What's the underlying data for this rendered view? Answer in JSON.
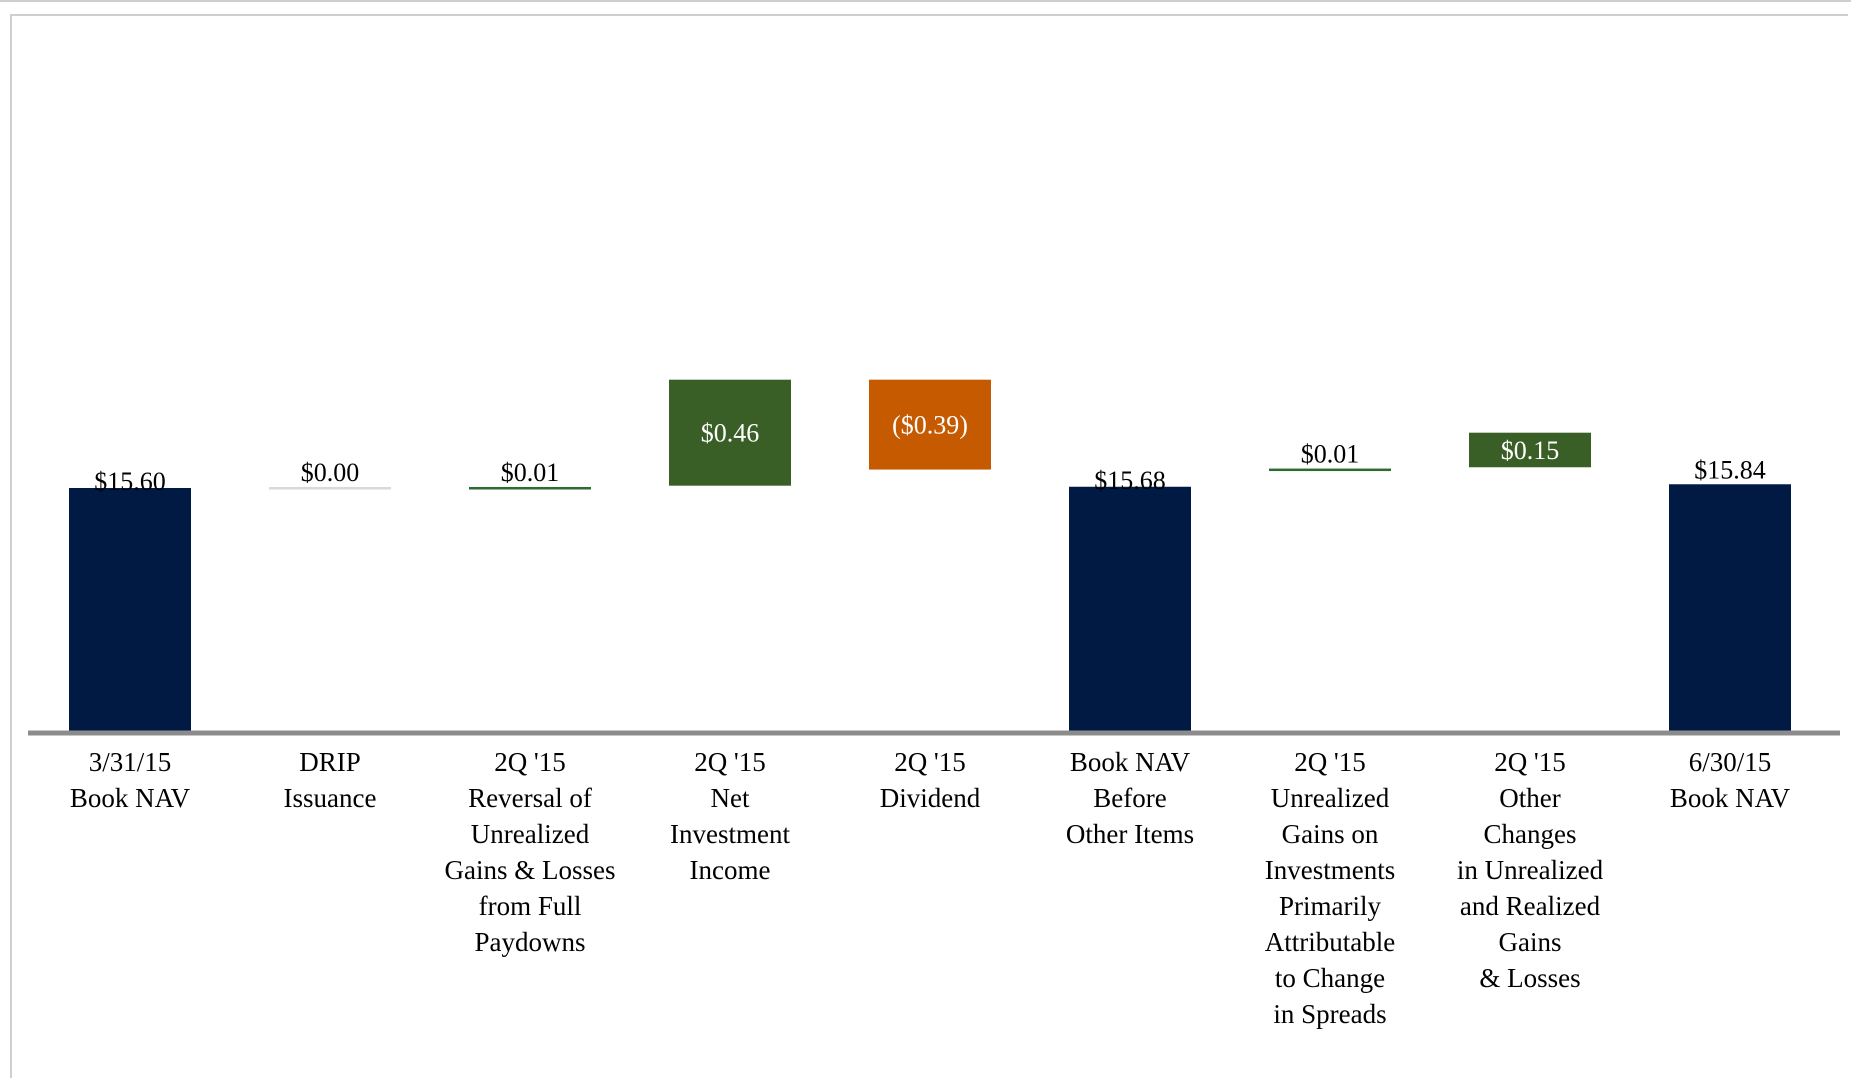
{
  "chart_data": {
    "type": "bar",
    "subtype": "waterfall",
    "title": "",
    "xlabel": "",
    "ylabel": "",
    "ylim": [
      0,
      16.5
    ],
    "grid": false,
    "legend": "none",
    "categories": [
      [
        "3/31/15",
        "Book NAV"
      ],
      [
        "DRIP",
        "Issuance"
      ],
      [
        "2Q '15",
        "Reversal of",
        "Unrealized",
        "Gains & Losses",
        "from Full",
        "Paydowns"
      ],
      [
        "2Q '15",
        "Net",
        "Investment",
        "Income"
      ],
      [
        "2Q '15",
        "Dividend"
      ],
      [
        "Book NAV",
        "Before",
        "Other Items"
      ],
      [
        "2Q '15",
        "Unrealized",
        "Gains on",
        "Investments",
        "Primarily",
        "Attributable",
        "to Change",
        "in Spreads"
      ],
      [
        "2Q '15",
        "Other",
        "Changes",
        "in Unrealized",
        "and Realized",
        "Gains",
        "& Losses"
      ],
      [
        "6/30/15",
        "Book NAV"
      ]
    ],
    "bars": [
      {
        "kind": "total",
        "start": 0,
        "end": 15.6,
        "label": "$15.60",
        "color": "#001a44"
      },
      {
        "kind": "delta",
        "start": 15.6,
        "end": 15.6,
        "label": "$0.00",
        "color": "#d9d9d9"
      },
      {
        "kind": "delta",
        "start": 15.6,
        "end": 15.61,
        "label": "$0.01",
        "color": "#2e6b2e"
      },
      {
        "kind": "delta",
        "start": 15.61,
        "end": 16.07,
        "label": "$0.46",
        "color": "#3a5f26"
      },
      {
        "kind": "delta",
        "start": 16.07,
        "end": 15.68,
        "label": "($0.39)",
        "color": "#c55a00"
      },
      {
        "kind": "total",
        "start": 0,
        "end": 15.68,
        "label": "$15.68",
        "color": "#001a44"
      },
      {
        "kind": "delta",
        "start": 15.68,
        "end": 15.69,
        "label": "$0.01",
        "color": "#2e6b2e"
      },
      {
        "kind": "delta",
        "start": 15.69,
        "end": 15.84,
        "label": "$0.15",
        "color": "#3a5f26"
      },
      {
        "kind": "total",
        "start": 0,
        "end": 15.84,
        "label": "$15.84",
        "color": "#001a44"
      }
    ]
  }
}
